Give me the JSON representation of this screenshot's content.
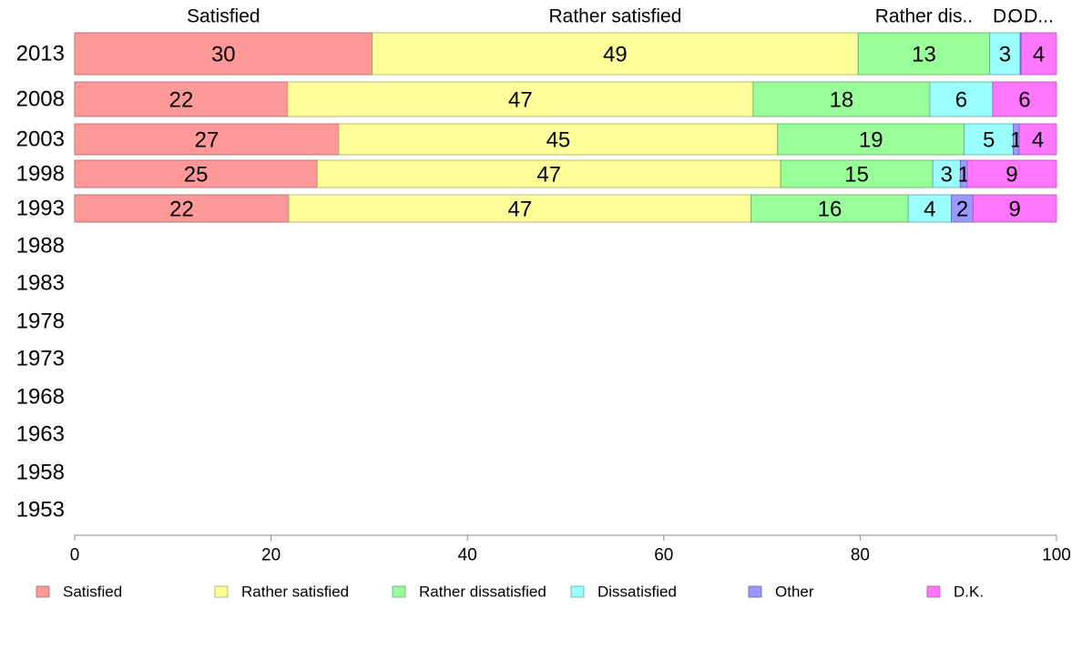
{
  "chart_data": {
    "type": "bar",
    "orientation": "horizontal",
    "stacked": true,
    "categories": [
      "2013",
      "2008",
      "2003",
      "1998",
      "1993",
      "1988",
      "1983",
      "1978",
      "1973",
      "1968",
      "1963",
      "1958",
      "1953"
    ],
    "series": [
      {
        "name": "Satisfied",
        "color": "#ff9999",
        "values": [
          30.3,
          21.7,
          26.9,
          24.7,
          21.8,
          null,
          null,
          null,
          null,
          null,
          null,
          null,
          null
        ],
        "labels": [
          "30",
          "22",
          "27",
          "25",
          "22",
          "",
          "",
          "",
          "",
          "",
          "",
          "",
          ""
        ]
      },
      {
        "name": "Rather satisfied",
        "color": "#ffff99",
        "values": [
          49.5,
          47.4,
          44.7,
          47.2,
          47.1,
          null,
          null,
          null,
          null,
          null,
          null,
          null,
          null
        ],
        "labels": [
          "49",
          "47",
          "45",
          "47",
          "47",
          "",
          "",
          "",
          "",
          "",
          "",
          "",
          ""
        ]
      },
      {
        "name": "Rather dissatisfied",
        "color": "#99ff99",
        "values": [
          13.4,
          18.0,
          19.0,
          15.5,
          16.0,
          null,
          null,
          null,
          null,
          null,
          null,
          null,
          null
        ],
        "labels": [
          "13",
          "18",
          "19",
          "15",
          "16",
          "",
          "",
          "",
          "",
          "",
          "",
          "",
          ""
        ]
      },
      {
        "name": "Dissatisfied",
        "color": "#99ffff",
        "values": [
          3.1,
          6.4,
          5.0,
          2.8,
          4.4,
          null,
          null,
          null,
          null,
          null,
          null,
          null,
          null
        ],
        "labels": [
          "3",
          "6",
          "5",
          "3",
          "4",
          "",
          "",
          "",
          "",
          "",
          "",
          "",
          ""
        ]
      },
      {
        "name": "Other",
        "color": "#9999ff",
        "values": [
          0.1,
          0.0,
          0.6,
          0.7,
          2.2,
          null,
          null,
          null,
          null,
          null,
          null,
          null,
          null
        ],
        "labels": [
          "",
          "",
          "1",
          "1",
          "2",
          "",
          "",
          "",
          "",
          "",
          "",
          "",
          ""
        ]
      },
      {
        "name": "D.K.",
        "color": "#ff77ff",
        "values": [
          3.6,
          6.5,
          3.8,
          9.1,
          8.5,
          null,
          null,
          null,
          null,
          null,
          null,
          null,
          null
        ],
        "labels": [
          "4",
          "6",
          "4",
          "9",
          "9",
          "",
          "",
          "",
          "",
          "",
          "",
          "",
          ""
        ]
      }
    ],
    "top_labels": [
      "Satisfied",
      "Rather satisfied",
      "Rather dis..",
      "D..",
      "O..",
      "D..."
    ],
    "xlim": [
      0,
      100
    ],
    "xticks": [
      "0",
      "20",
      "40",
      "60",
      "80",
      "100"
    ],
    "title": "",
    "xlabel": "",
    "ylabel": "",
    "grid": false,
    "legend": {
      "position": "bottom",
      "entries": [
        "Satisfied",
        "Rather satisfied",
        "Rather dissatisfied",
        "Dissatisfied",
        "Other",
        "D.K."
      ]
    }
  }
}
